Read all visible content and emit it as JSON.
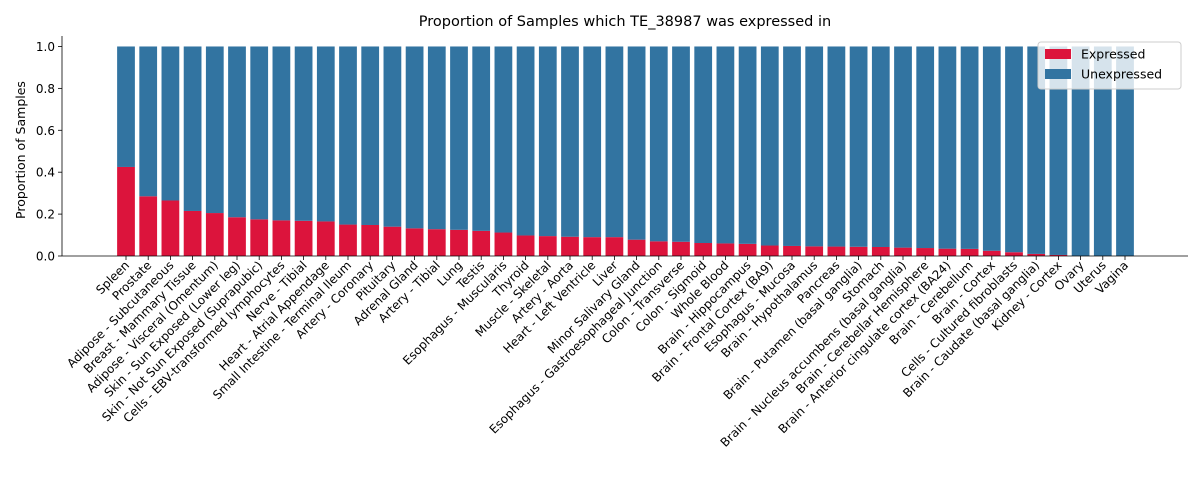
{
  "chart_data": {
    "type": "bar",
    "stacked": true,
    "title": "Proportion of Samples which TE_38987 was expressed in",
    "xlabel": "",
    "ylabel": "Proportion of Samples",
    "ylim": [
      0,
      1.05
    ],
    "yticks": [
      "0.0",
      "0.2",
      "0.4",
      "0.6",
      "0.8",
      "1.0"
    ],
    "grid": false,
    "legend_position": "top-right",
    "categories": [
      "Spleen",
      "Prostate",
      "Adipose - Subcutaneous",
      "Breast - Mammary Tissue",
      "Adipose - Visceral (Omentum)",
      "Skin - Sun Exposed (Lower leg)",
      "Skin - Not Sun Exposed (Suprapubic)",
      "Cells - EBV-transformed lymphocytes",
      "Nerve - Tibial",
      "Heart - Atrial Appendage",
      "Small Intestine - Terminal Ileum",
      "Artery - Coronary",
      "Pituitary",
      "Adrenal Gland",
      "Artery - Tibial",
      "Lung",
      "Testis",
      "Esophagus - Muscularis",
      "Thyroid",
      "Muscle - Skeletal",
      "Artery - Aorta",
      "Heart - Left Ventricle",
      "Liver",
      "Minor Salivary Gland",
      "Esophagus - Gastroesophageal Junction",
      "Colon - Transverse",
      "Colon - Sigmoid",
      "Whole Blood",
      "Brain - Hippocampus",
      "Brain - Frontal Cortex (BA9)",
      "Esophagus - Mucosa",
      "Brain - Hypothalamus",
      "Pancreas",
      "Brain - Putamen (basal ganglia)",
      "Stomach",
      "Brain - Nucleus accumbens (basal ganglia)",
      "Brain - Cerebellar Hemisphere",
      "Brain - Anterior cingulate cortex (BA24)",
      "Brain - Cerebellum",
      "Brain - Cortex",
      "Cells - Cultured fibroblasts",
      "Brain - Caudate (basal ganglia)",
      "Kidney - Cortex",
      "Ovary",
      "Uterus",
      "Vagina"
    ],
    "series": [
      {
        "name": "Expressed",
        "color": "#dc143c",
        "values": [
          0.425,
          0.285,
          0.265,
          0.215,
          0.205,
          0.185,
          0.175,
          0.17,
          0.168,
          0.165,
          0.15,
          0.148,
          0.14,
          0.132,
          0.128,
          0.125,
          0.12,
          0.112,
          0.098,
          0.095,
          0.092,
          0.09,
          0.09,
          0.078,
          0.07,
          0.068,
          0.062,
          0.06,
          0.058,
          0.05,
          0.048,
          0.046,
          0.045,
          0.044,
          0.043,
          0.04,
          0.038,
          0.035,
          0.034,
          0.025,
          0.018,
          0.01,
          0.005,
          0.0,
          0.0,
          0.0
        ]
      },
      {
        "name": "Unexpressed",
        "color": "#3274a1",
        "values": [
          0.575,
          0.715,
          0.735,
          0.785,
          0.795,
          0.815,
          0.825,
          0.83,
          0.832,
          0.835,
          0.85,
          0.852,
          0.86,
          0.868,
          0.872,
          0.875,
          0.88,
          0.888,
          0.902,
          0.905,
          0.908,
          0.91,
          0.91,
          0.922,
          0.93,
          0.932,
          0.938,
          0.94,
          0.942,
          0.95,
          0.952,
          0.954,
          0.955,
          0.956,
          0.957,
          0.96,
          0.962,
          0.965,
          0.966,
          0.975,
          0.982,
          0.99,
          0.995,
          1.0,
          1.0,
          1.0
        ]
      }
    ]
  }
}
